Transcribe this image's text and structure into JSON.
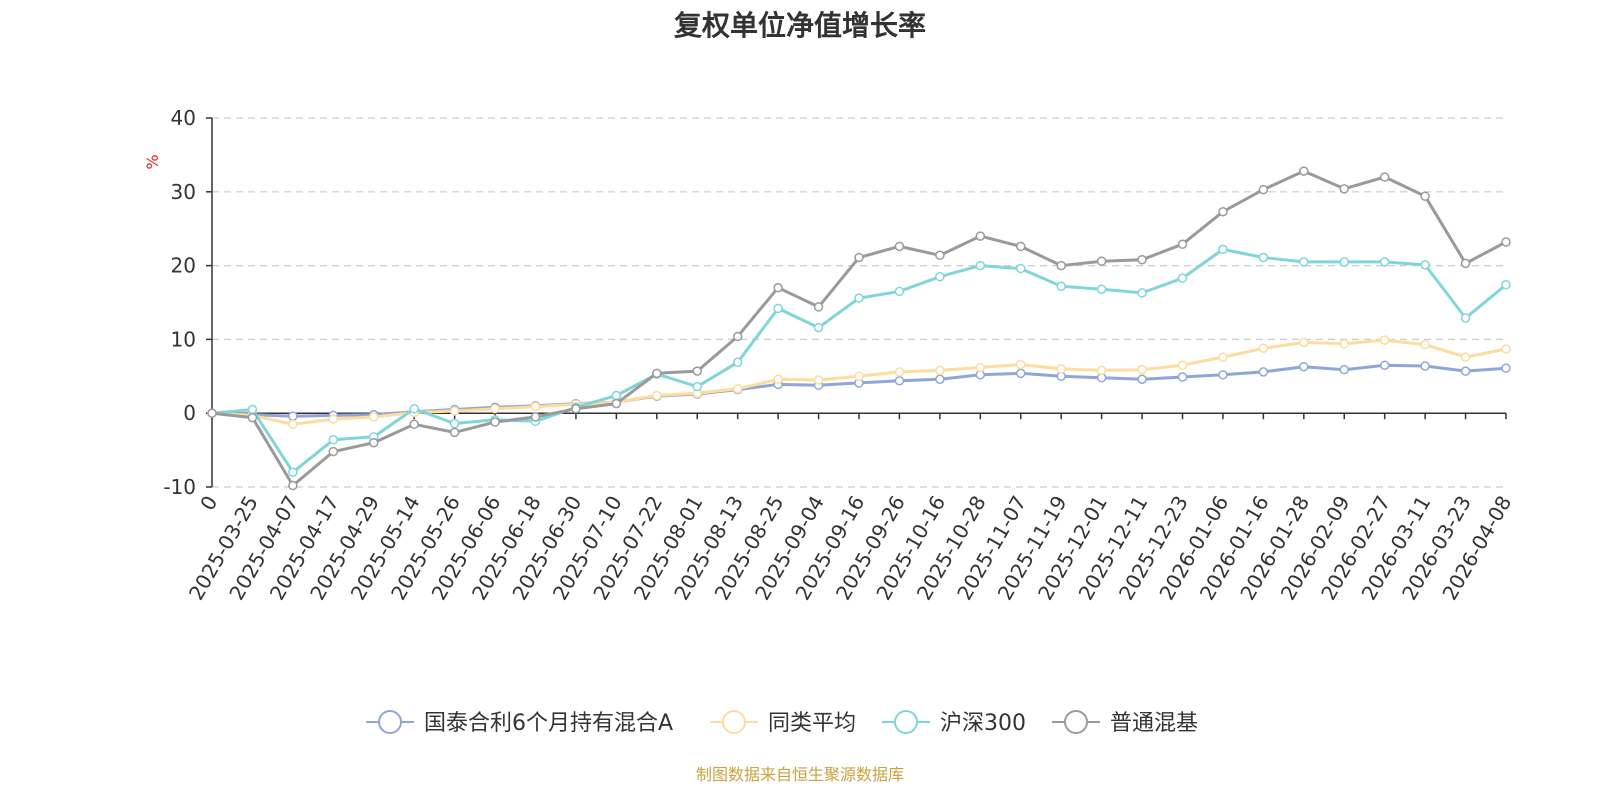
{
  "chart_data": {
    "type": "line",
    "title": "复权单位净值增长率",
    "ylabel": "%",
    "ylim": [
      -10,
      40
    ],
    "yticks": [
      -10,
      0,
      10,
      20,
      30,
      40
    ],
    "grid": true,
    "legend_position": "bottom",
    "source_note": "制图数据来自恒生聚源数据库",
    "x_tick_labels": [
      "0",
      "2025-03-25",
      "2025-04-07",
      "2025-04-17",
      "2025-04-29",
      "2025-05-14",
      "2025-05-26",
      "2025-06-06",
      "2025-06-18",
      "2025-06-30",
      "2025-07-10",
      "2025-07-22",
      "2025-08-01",
      "2025-08-13",
      "2025-08-25",
      "2025-09-04",
      "2025-09-16",
      "2025-09-26",
      "2025-10-16",
      "2025-10-28",
      "2025-11-07",
      "2025-11-19",
      "2025-12-01",
      "2025-12-11",
      "2025-12-23",
      "2026-01-06",
      "2026-01-16",
      "2026-01-28",
      "2026-02-09",
      "2026-02-27",
      "2026-03-11",
      "2026-03-23",
      "2026-04-08"
    ],
    "x": [
      "0",
      "2025-03-25",
      "2025-04-07",
      "2025-04-17",
      "2025-04-29",
      "2025-05-14",
      "2025-05-26",
      "2025-06-06",
      "2025-06-18",
      "2025-06-30",
      "2025-07-10",
      "2025-07-22",
      "2025-08-01",
      "2025-08-13",
      "2025-08-25",
      "2025-09-04",
      "2025-09-16",
      "2025-09-26",
      "2025-10-16",
      "2025-10-28",
      "2025-11-07",
      "2025-11-19",
      "2025-12-01",
      "2025-12-11",
      "2025-12-23",
      "2026-01-06",
      "2026-01-16",
      "2026-01-28",
      "2026-02-09",
      "2026-02-27",
      "2026-03-11",
      "2026-03-23",
      "2026-04-08"
    ],
    "series": [
      {
        "name": "国泰合利6个月持有混合A",
        "color": "#8ea6d8",
        "values": [
          0,
          -0.2,
          -0.4,
          -0.3,
          -0.2,
          0.2,
          0.5,
          0.8,
          1.0,
          1.3,
          1.5,
          2.3,
          2.6,
          3.2,
          3.9,
          3.8,
          4.1,
          4.4,
          4.6,
          5.2,
          5.4,
          5.0,
          4.8,
          4.6,
          4.9,
          5.2,
          5.6,
          6.3,
          5.9,
          6.5,
          6.4,
          5.7,
          6.1
        ]
      },
      {
        "name": "同类平均",
        "color": "#fddc9e",
        "values": [
          0,
          -0.3,
          -1.5,
          -0.8,
          -0.5,
          0.1,
          0.3,
          0.6,
          0.9,
          1.2,
          1.5,
          2.4,
          2.7,
          3.3,
          4.6,
          4.5,
          5.0,
          5.6,
          5.8,
          6.2,
          6.6,
          6.0,
          5.8,
          5.9,
          6.5,
          7.6,
          8.8,
          9.6,
          9.4,
          9.9,
          9.3,
          7.6,
          8.7
        ]
      },
      {
        "name": "沪深300",
        "color": "#7fd6da",
        "values": [
          0,
          0.5,
          -8.0,
          -3.6,
          -3.2,
          0.6,
          -1.4,
          -0.9,
          -1.1,
          0.8,
          2.4,
          5.3,
          3.6,
          6.9,
          14.2,
          11.6,
          15.6,
          16.5,
          18.5,
          20.0,
          19.6,
          17.2,
          16.8,
          16.3,
          18.3,
          22.2,
          21.1,
          20.5,
          20.5,
          20.5,
          20.1,
          12.9,
          17.4
        ]
      },
      {
        "name": "普通混基",
        "color": "#9a9a9a",
        "values": [
          0,
          -0.6,
          -9.8,
          -5.2,
          -4.0,
          -1.5,
          -2.6,
          -1.2,
          -0.5,
          0.6,
          1.3,
          5.4,
          5.7,
          10.4,
          17.0,
          14.4,
          21.1,
          22.6,
          21.4,
          24.0,
          22.6,
          20.0,
          20.6,
          20.8,
          22.9,
          27.3,
          30.3,
          32.8,
          30.4,
          32.0,
          29.4,
          20.3,
          23.2
        ]
      }
    ]
  }
}
